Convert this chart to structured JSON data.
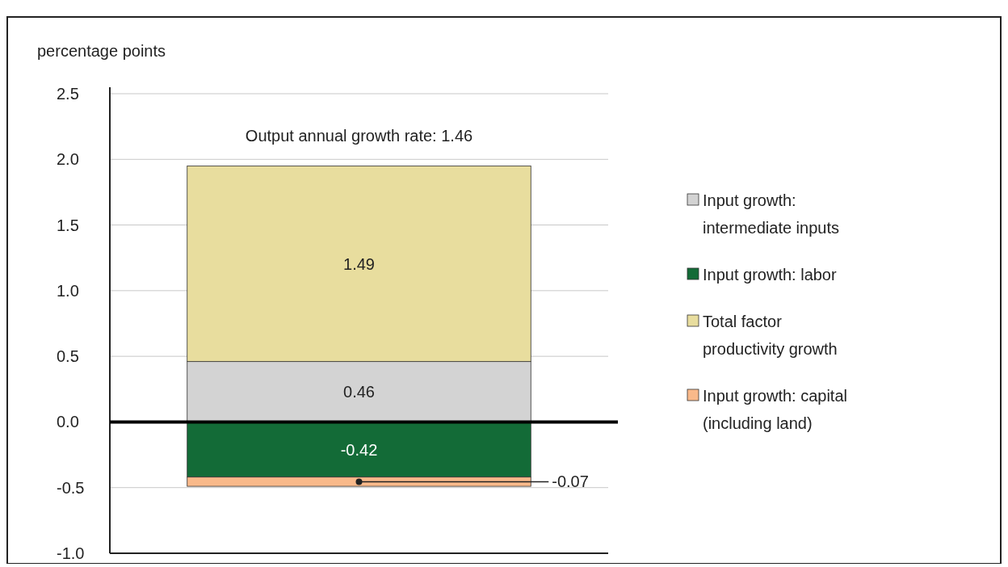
{
  "chart_data": {
    "type": "bar",
    "stacked": true,
    "ylabel": "percentage points",
    "categories": [
      null
    ],
    "series": [
      {
        "name": "Input growth: intermediate inputs",
        "color": "#d3d3d3",
        "values": [
          0.46
        ]
      },
      {
        "name": "Input growth: labor",
        "color": "#136b37",
        "values": [
          -0.42
        ]
      },
      {
        "name": "Total factor productivity growth",
        "color": "#e8dd9e",
        "values": [
          1.49
        ]
      },
      {
        "name": "Input growth: capital (including land)",
        "color": "#f9b98a",
        "values": [
          -0.07
        ]
      }
    ],
    "ylim": [
      -1.0,
      2.5
    ],
    "yticks": [
      {
        "value": -1,
        "label": "-1.0"
      },
      -0.5,
      {
        "value": 0,
        "label": "0.0"
      },
      0.5,
      {
        "value": 1,
        "label": "1.0"
      },
      1.5,
      {
        "value": 2,
        "label": "2.0"
      },
      2.5
    ],
    "grid": "y",
    "legend": "right",
    "data_labels": true,
    "ref_lines": [
      {
        "axis": "y",
        "value": 0,
        "color": "#000000"
      }
    ],
    "annotations": [
      "Output annual growth rate: 1.46"
    ]
  }
}
